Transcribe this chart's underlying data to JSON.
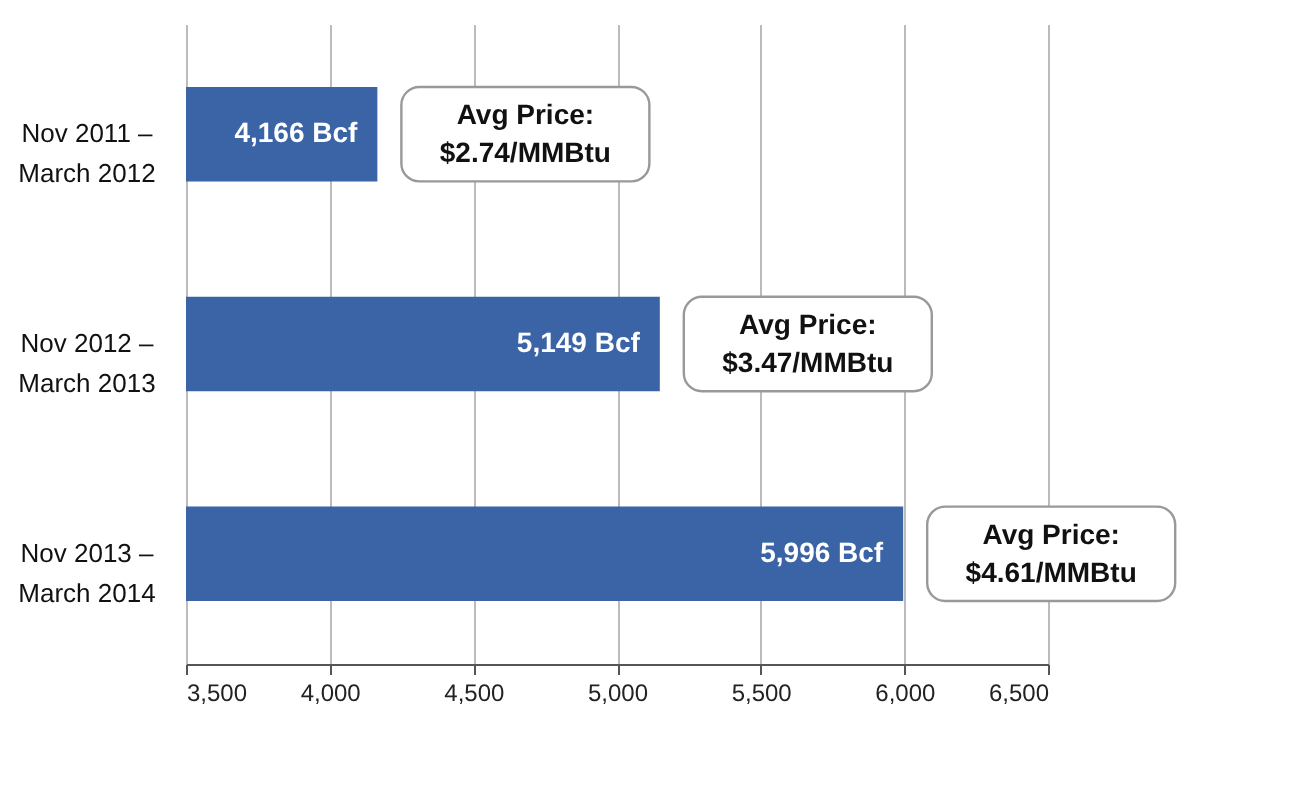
{
  "chart_data": {
    "type": "bar",
    "orientation": "horizontal",
    "categories": [
      "Nov 2011 – March 2012",
      "Nov 2012 – March 2013",
      "Nov 2013 – March 2014"
    ],
    "values": [
      4166,
      5149,
      5996
    ],
    "value_labels": [
      "4,166 Bcf",
      "5,149 Bcf",
      "5,996 Bcf"
    ],
    "color": "#3b64a6",
    "xlim": [
      3500,
      6500
    ],
    "xticks": [
      {
        "value": 3500,
        "label": "3,500"
      },
      {
        "value": 4000,
        "label": "4,000"
      },
      {
        "value": 4500,
        "label": "4,500"
      },
      {
        "value": 5000,
        "label": "5,000"
      },
      {
        "value": 5500,
        "label": "5,500"
      },
      {
        "value": 6000,
        "label": "6,000"
      },
      {
        "value": 6500,
        "label": "6,500"
      }
    ],
    "grid": "x",
    "annotations": [
      {
        "text": "Avg Price: $2.74/MMBtu",
        "x": 4166,
        "y": "Nov 2011 – March 2012"
      },
      {
        "text": "Avg Price: $3.47/MMBtu",
        "x": 5149,
        "y": "Nov 2012 – March 2013"
      },
      {
        "text": "Avg Price: $4.61/MMBtu",
        "x": 5996,
        "y": "Nov 2013 – March 2014"
      }
    ]
  }
}
